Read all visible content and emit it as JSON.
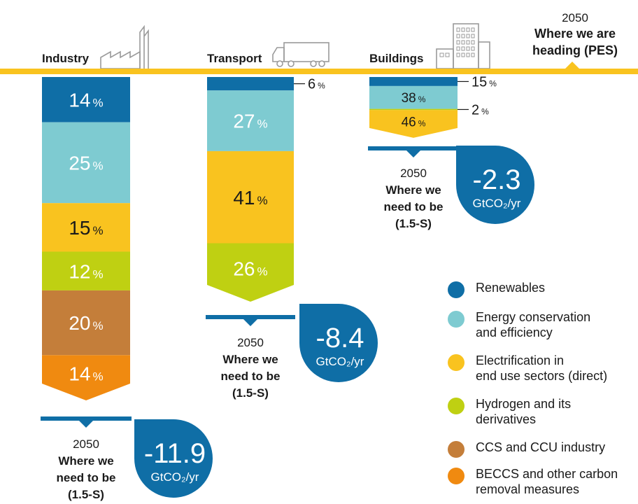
{
  "chart_data": {
    "type": "stacked-bar",
    "title": "",
    "unit": "%",
    "series": [
      {
        "key": "renewables",
        "name": "Renewables",
        "color": "#0f6ea6"
      },
      {
        "key": "efficiency",
        "name": "Energy conservation\nand efficiency",
        "color": "#7ecbd1"
      },
      {
        "key": "electrification",
        "name": "Electrification in\nend use sectors (direct)",
        "color": "#f9c31f"
      },
      {
        "key": "hydrogen",
        "name": "Hydrogen and its\nderivatives",
        "color": "#bfd012"
      },
      {
        "key": "ccs",
        "name": "CCS and CCU industry",
        "color": "#c47e3a"
      },
      {
        "key": "beccs",
        "name": "BECCS and other carbon\nremoval measures",
        "color": "#f08a10"
      }
    ],
    "sectors": [
      {
        "name": "Industry",
        "segments": [
          {
            "series": "renewables",
            "value": 14
          },
          {
            "series": "efficiency",
            "value": 25
          },
          {
            "series": "electrification",
            "value": 15
          },
          {
            "series": "hydrogen",
            "value": 12
          },
          {
            "series": "ccs",
            "value": 20
          },
          {
            "series": "beccs",
            "value": 14
          }
        ],
        "total_value": "-11.9",
        "total_unit": "GtCO₂/yr",
        "year": "2050",
        "caption": "Where we\nneed to be\n(1.5-S)"
      },
      {
        "name": "Transport",
        "segments": [
          {
            "series": "renewables",
            "value": 6
          },
          {
            "series": "efficiency",
            "value": 27
          },
          {
            "series": "electrification",
            "value": 41
          },
          {
            "series": "hydrogen",
            "value": 26
          }
        ],
        "total_value": "-8.4",
        "total_unit": "GtCO₂/yr",
        "year": "2050",
        "caption": "Where we\nneed to be\n(1.5-S)"
      },
      {
        "name": "Buildings",
        "segments": [
          {
            "series": "renewables",
            "value": 15
          },
          {
            "series": "efficiency",
            "value": 38
          },
          {
            "series": "hydrogen",
            "value": 2
          },
          {
            "series": "electrification",
            "value": 46
          }
        ],
        "total_value": "-2.3",
        "total_unit": "GtCO₂/yr",
        "year": "2050",
        "caption": "Where we\nneed to be\n(1.5-S)"
      }
    ],
    "baseline": {
      "year": "2050",
      "label": "Where we are\nheading (PES)"
    }
  },
  "colors": {
    "baseline": "#f9c31f",
    "marker": "#0f6ea6",
    "badge": "#0f6ea6",
    "icon": "#9a9a9a",
    "text": "#1a1a1a"
  }
}
